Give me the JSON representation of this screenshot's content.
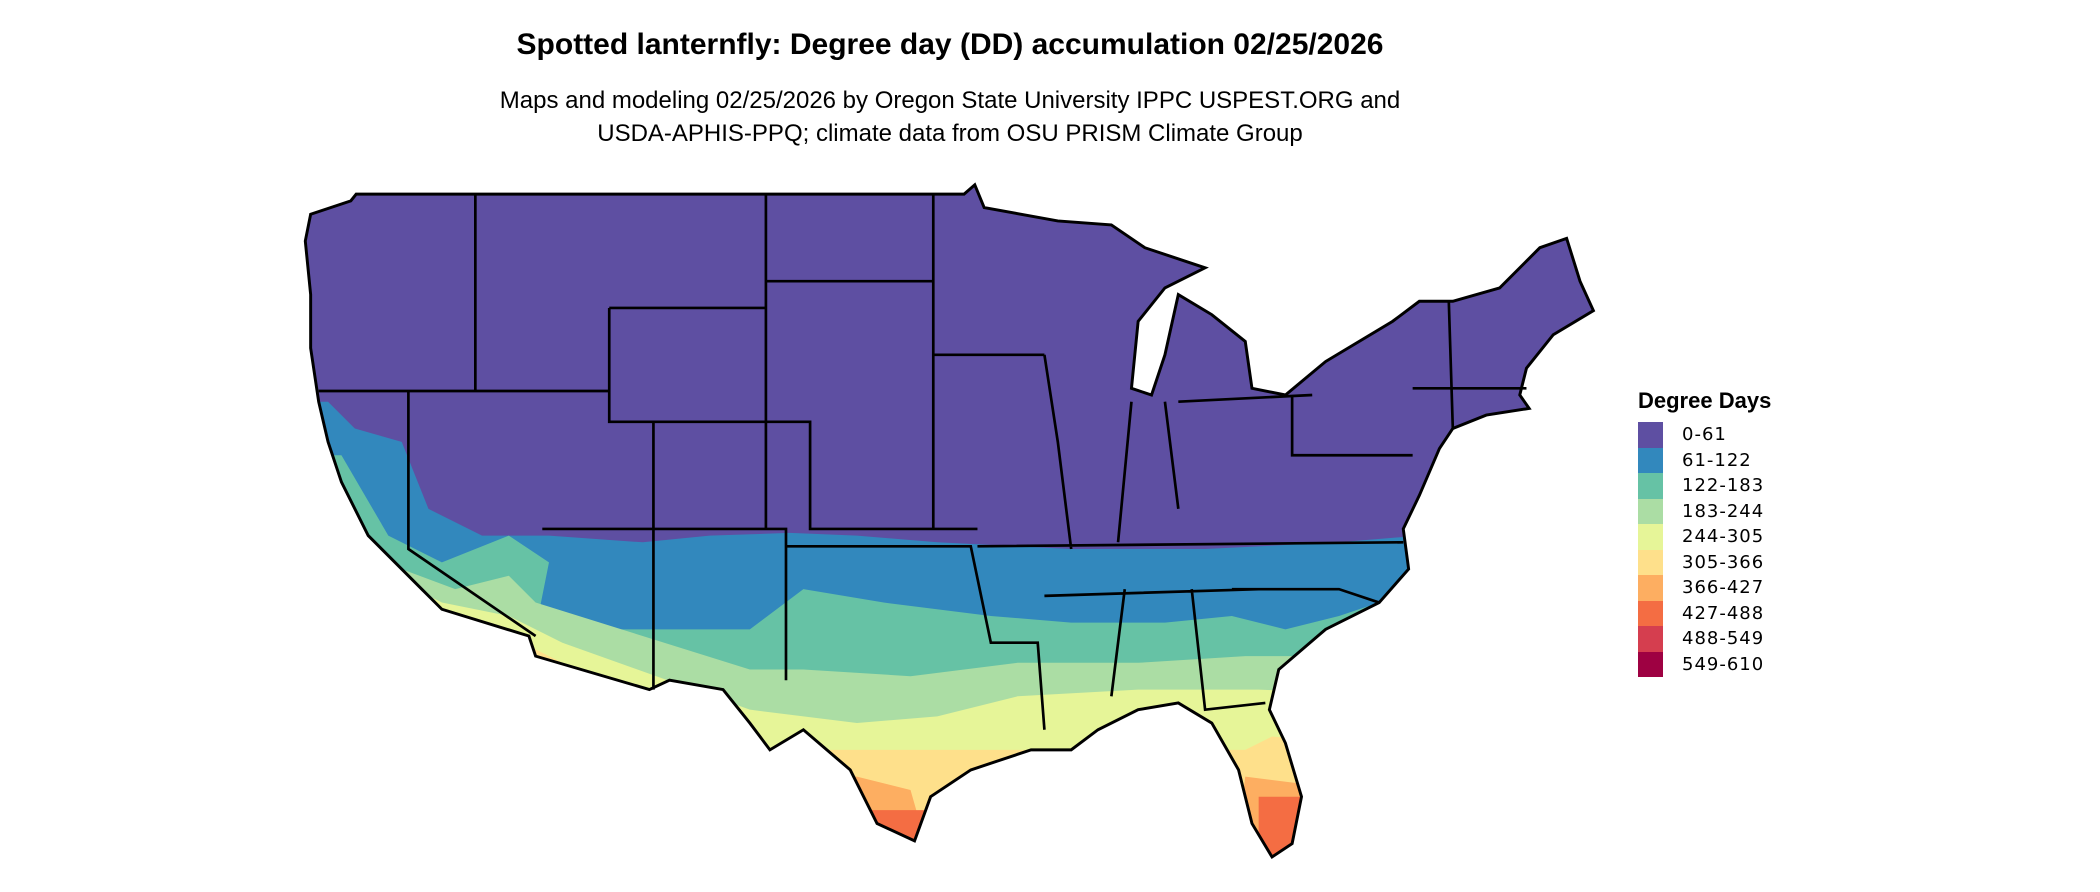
{
  "title": "Spotted lanternfly: Degree day (DD) accumulation 02/25/2026",
  "subtitle_line1": "Maps and modeling 02/25/2026 by Oregon State University IPPC USPEST.ORG and",
  "subtitle_line2": "USDA-APHIS-PPQ; climate data from OSU PRISM Climate Group",
  "legend": {
    "title": "Degree Days",
    "items": [
      {
        "label": "0-61",
        "color": "#5E4FA2"
      },
      {
        "label": "61-122",
        "color": "#3288BD"
      },
      {
        "label": "122-183",
        "color": "#66C2A5"
      },
      {
        "label": "183-244",
        "color": "#ABDDA4"
      },
      {
        "label": "244-305",
        "color": "#E6F598"
      },
      {
        "label": "305-366",
        "color": "#FEE08B"
      },
      {
        "label": "366-427",
        "color": "#FDAE61"
      },
      {
        "label": "427-488",
        "color": "#F46D43"
      },
      {
        "label": "488-549",
        "color": "#D53E4F"
      },
      {
        "label": "549-610",
        "color": "#9E0142"
      }
    ]
  }
}
